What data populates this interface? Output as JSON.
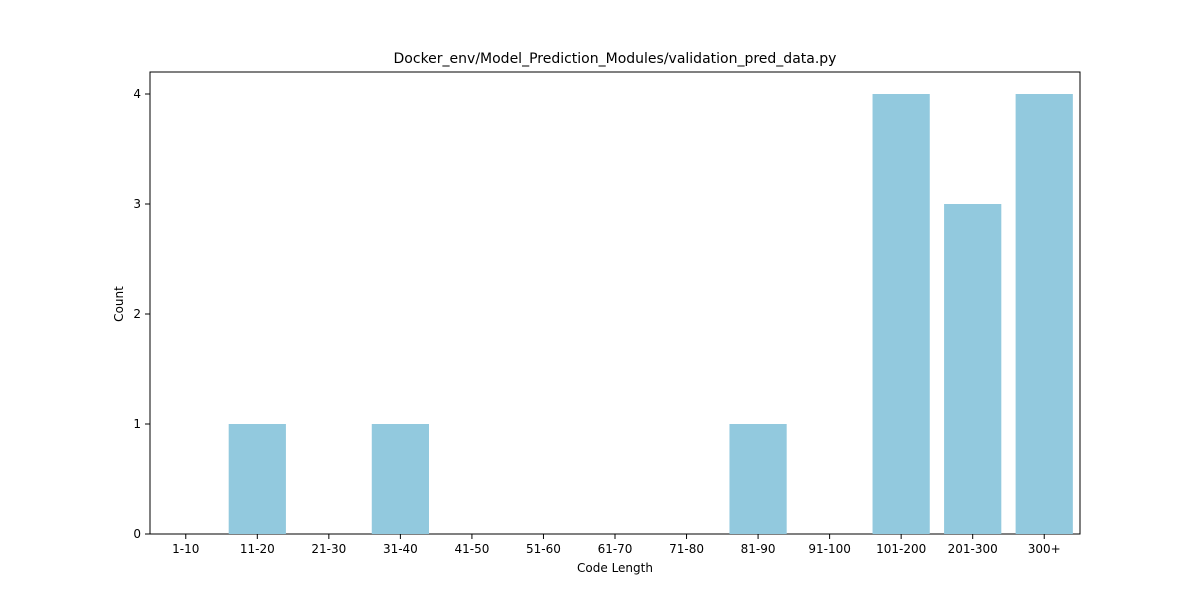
{
  "chart_data": {
    "type": "bar",
    "title": "Docker_env/Model_Prediction_Modules/validation_pred_data.py",
    "xlabel": "Code Length",
    "ylabel": "Count",
    "categories": [
      "1-10",
      "11-20",
      "21-30",
      "31-40",
      "41-50",
      "51-60",
      "61-70",
      "71-80",
      "81-90",
      "91-100",
      "101-200",
      "201-300",
      "300+"
    ],
    "values": [
      0,
      1,
      0,
      1,
      0,
      0,
      0,
      0,
      1,
      0,
      4,
      3,
      4
    ],
    "ylim": [
      0,
      4.2
    ],
    "yticks": [
      0,
      1,
      2,
      3,
      4
    ],
    "bar_color": "#92c9de",
    "grid": false,
    "legend": "none"
  }
}
